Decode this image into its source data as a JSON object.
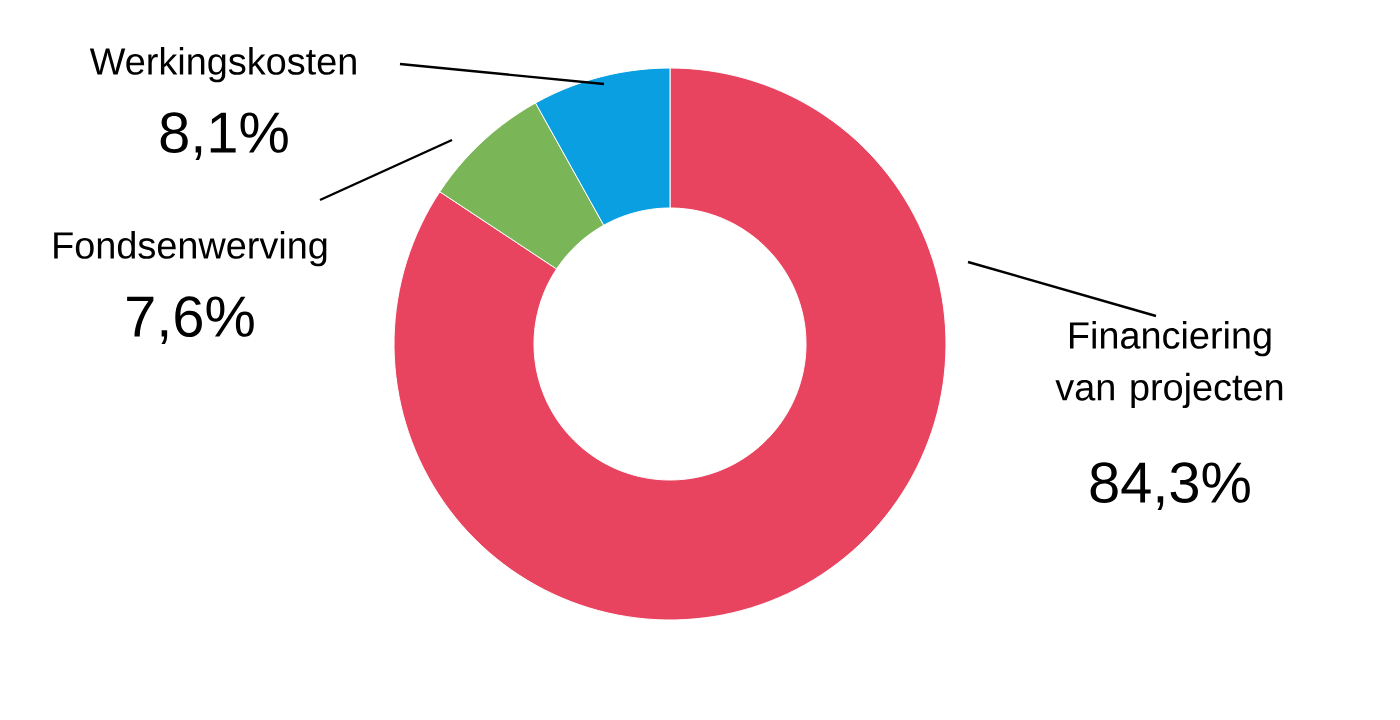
{
  "chart_data": {
    "type": "donut",
    "categories": [
      "Financiering van projecten",
      "Fondsenwerving",
      "Werkingskosten"
    ],
    "values": [
      84.3,
      7.6,
      8.1
    ],
    "colors": [
      "#e8435f",
      "#7ab657",
      "#0a9fe0"
    ],
    "value_labels": [
      "84,3%",
      "7,6%",
      "8,1%"
    ]
  }
}
